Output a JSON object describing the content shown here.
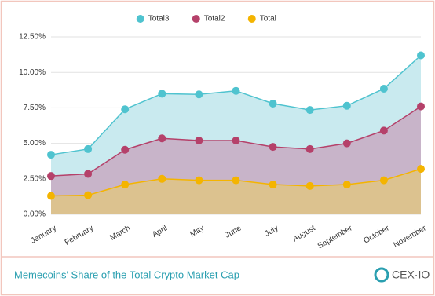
{
  "chart_data": {
    "type": "area-line",
    "categories": [
      "January",
      "February",
      "March",
      "April",
      "May",
      "June",
      "July",
      "August",
      "September",
      "October",
      "November"
    ],
    "series": [
      {
        "name": "Total3",
        "color": "#4fc3cf",
        "fill": "#c9eaef",
        "values": [
          4.2,
          4.6,
          7.4,
          8.5,
          8.45,
          8.7,
          7.8,
          7.35,
          7.65,
          8.85,
          11.2
        ]
      },
      {
        "name": "Total2",
        "color": "#b5416a",
        "fill": "#c8b4c9",
        "values": [
          2.7,
          2.85,
          4.55,
          5.35,
          5.2,
          5.2,
          4.75,
          4.6,
          5.0,
          5.9,
          7.6
        ]
      },
      {
        "name": "Total",
        "color": "#f4b400",
        "fill": "#dcc28f",
        "values": [
          1.3,
          1.35,
          2.1,
          2.5,
          2.4,
          2.4,
          2.1,
          2.0,
          2.1,
          2.4,
          3.2
        ]
      }
    ],
    "ylim": [
      0,
      12.5
    ],
    "yticks": [
      {
        "value": 0,
        "label": "0.00%"
      },
      {
        "value": 2.5,
        "label": "2.50%"
      },
      {
        "value": 5,
        "label": "5.00%"
      },
      {
        "value": 7.5,
        "label": "7.50%"
      },
      {
        "value": 10,
        "label": "10.00%"
      },
      {
        "value": 12.5,
        "label": "12.50%"
      }
    ],
    "grid": true,
    "legend": "top"
  },
  "footer": {
    "caption": "Memecoins' Share of the Total Crypto Market Cap",
    "logo": "CEX·IO"
  }
}
